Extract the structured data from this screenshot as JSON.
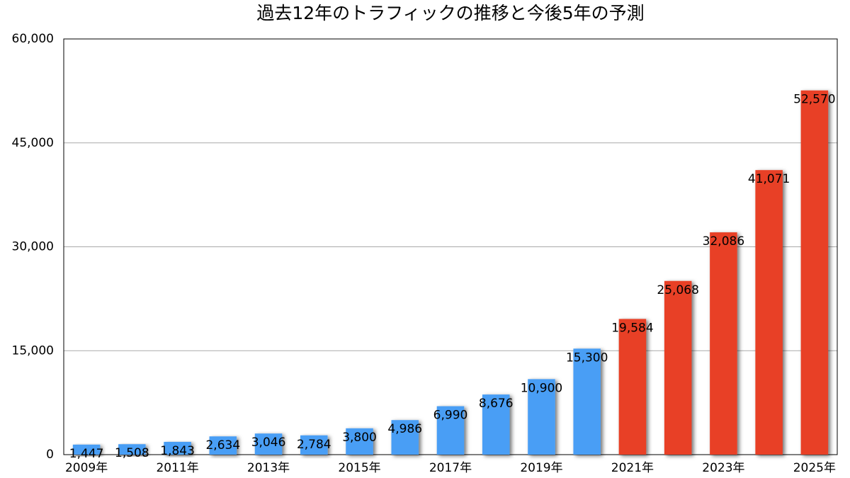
{
  "chart_data": {
    "type": "bar",
    "title": "過去12年のトラフィックの推移と今後5年の予測",
    "categories": [
      "2009年",
      null,
      "2011年",
      null,
      "2013年",
      null,
      "2015年",
      null,
      "2017年",
      null,
      "2019年",
      null,
      "2021年",
      null,
      "2023年",
      null,
      "2025年"
    ],
    "values": [
      1447,
      1508,
      1843,
      2634,
      3046,
      2784,
      3800,
      4986,
      6990,
      8676,
      10900,
      15300,
      19584,
      25068,
      32086,
      41071,
      52570
    ],
    "value_labels": [
      "1,447",
      "1,508",
      "1,843",
      "2,634",
      "3,046",
      "2,784",
      "3,800",
      "4,986",
      "6,990",
      "8,676",
      "10,900",
      "15,300",
      "19,584",
      "25,068",
      "32,086",
      "41,071",
      "52,570"
    ],
    "colors": [
      "#4a9ef5",
      "#4a9ef5",
      "#4a9ef5",
      "#4a9ef5",
      "#4a9ef5",
      "#4a9ef5",
      "#4a9ef5",
      "#4a9ef5",
      "#4a9ef5",
      "#4a9ef5",
      "#4a9ef5",
      "#4a9ef5",
      "#e84027",
      "#e84027",
      "#e84027",
      "#e84027",
      "#e84027"
    ],
    "ylim": [
      0,
      60000
    ],
    "yticks": [
      0,
      {
        "value": 15000,
        "label": "15,000"
      },
      {
        "value": 30000,
        "label": "30,000"
      },
      {
        "value": 45000,
        "label": "45,000"
      },
      {
        "value": 60000,
        "label": "60,000"
      }
    ],
    "grid": true
  }
}
